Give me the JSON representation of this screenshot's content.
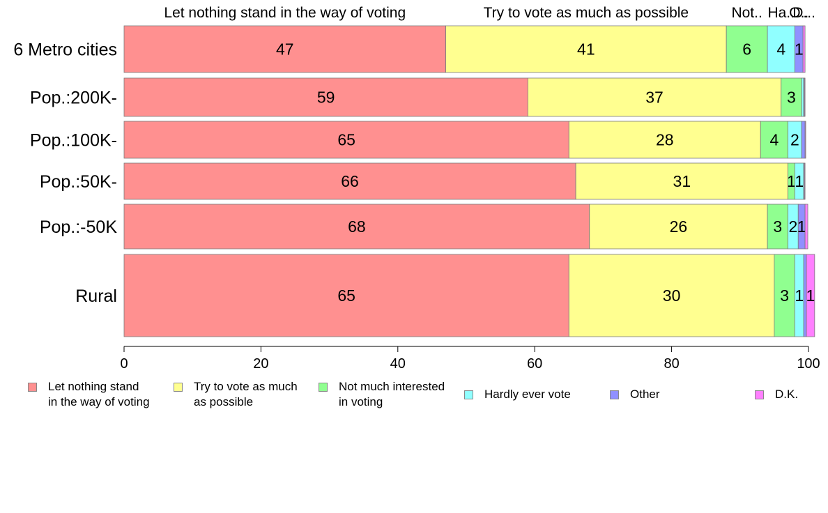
{
  "chart_data": {
    "type": "bar",
    "orientation": "horizontal",
    "stacked": true,
    "categories": [
      "6 Metro cities",
      "Pop.:200K-",
      "Pop.:100K-",
      "Pop.:50K-",
      "Pop.:-50K",
      "Rural"
    ],
    "top_labels": [
      "Let nothing stand in the way of voting",
      "Try to vote as much as possible",
      "Not..",
      "Ha..",
      "O..",
      "D..."
    ],
    "series": [
      {
        "name": "Let nothing stand\nin the way of voting",
        "color": "#ff9090",
        "values": [
          47,
          59,
          65,
          66,
          68,
          65
        ],
        "labels": [
          "47",
          "59",
          "65",
          "66",
          "68",
          "65"
        ]
      },
      {
        "name": "Try to vote as much\nas possible",
        "color": "#ffff90",
        "values": [
          41,
          37,
          28,
          31,
          26,
          30
        ],
        "labels": [
          "41",
          "37",
          "28",
          "31",
          "26",
          "30"
        ]
      },
      {
        "name": "Not much interested\nin voting",
        "color": "#90ff90",
        "values": [
          6,
          3,
          4,
          1,
          3,
          3
        ],
        "labels": [
          "6",
          "3",
          "4",
          "1",
          "3",
          "3"
        ]
      },
      {
        "name": "Hardly ever vote",
        "color": "#90ffff",
        "values": [
          4,
          0.3,
          2,
          1.3,
          1.5,
          1.3
        ],
        "labels": [
          "4",
          "",
          "2",
          "1",
          "2",
          "1"
        ]
      },
      {
        "name": "Other",
        "color": "#9090ff",
        "values": [
          1.2,
          0.1,
          0.5,
          0.1,
          1,
          0.4
        ],
        "labels": [
          "1",
          "",
          "",
          "",
          "1",
          ""
        ]
      },
      {
        "name": "D.K.",
        "color": "#ff80ff",
        "values": [
          0.3,
          0.1,
          0.1,
          0.1,
          0.4,
          1.2
        ],
        "labels": [
          "",
          "",
          "",
          "",
          "",
          "1"
        ]
      }
    ],
    "xlim": [
      0,
      100
    ],
    "xticks": [
      0,
      20,
      40,
      60,
      80,
      100
    ],
    "grid": false,
    "legend_position": "bottom"
  }
}
